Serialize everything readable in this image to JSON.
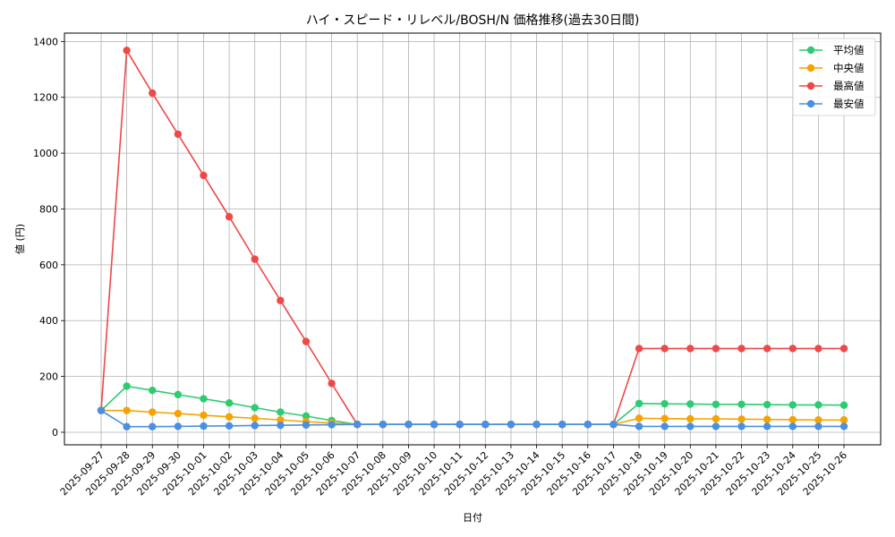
{
  "chart_data": {
    "type": "line",
    "title": "ハイ・スピード・リレベル/BOSH/N 価格推移(過去30日間)",
    "xlabel": "日付",
    "ylabel": "値 (円)",
    "ylim": [
      -45,
      1430
    ],
    "yticks": [
      0,
      200,
      400,
      600,
      800,
      1000,
      1200,
      1400
    ],
    "grid": true,
    "legend_position": "top-right",
    "categories": [
      "2025-09-27",
      "2025-09-28",
      "2025-09-29",
      "2025-09-30",
      "2025-10-01",
      "2025-10-02",
      "2025-10-03",
      "2025-10-04",
      "2025-10-05",
      "2025-10-06",
      "2025-10-07",
      "2025-10-08",
      "2025-10-09",
      "2025-10-10",
      "2025-10-11",
      "2025-10-12",
      "2025-10-13",
      "2025-10-14",
      "2025-10-15",
      "2025-10-16",
      "2025-10-17",
      "2025-10-18",
      "2025-10-19",
      "2025-10-20",
      "2025-10-21",
      "2025-10-22",
      "2025-10-23",
      "2025-10-24",
      "2025-10-25",
      "2025-10-26"
    ],
    "series": [
      {
        "name": "平均値",
        "color": "#2ecc71",
        "values": [
          78,
          165,
          150,
          135,
          120,
          105,
          88,
          72,
          58,
          42,
          28,
          28,
          28,
          28,
          28,
          28,
          28,
          28,
          28,
          28,
          28,
          103,
          102,
          101,
          100,
          100,
          99,
          98,
          98,
          97
        ]
      },
      {
        "name": "中央値",
        "color": "#f5a300",
        "values": [
          78,
          78,
          72,
          67,
          61,
          55,
          50,
          44,
          38,
          33,
          28,
          28,
          28,
          28,
          28,
          28,
          28,
          28,
          28,
          28,
          28,
          50,
          49,
          48,
          48,
          47,
          46,
          45,
          44,
          44
        ]
      },
      {
        "name": "最高値",
        "color": "#ef4848",
        "values": [
          78,
          1368,
          1215,
          1068,
          920,
          772,
          620,
          472,
          325,
          175,
          28,
          28,
          28,
          28,
          28,
          28,
          28,
          28,
          28,
          28,
          28,
          300,
          300,
          300,
          300,
          300,
          300,
          300,
          300,
          300
        ]
      },
      {
        "name": "最安値",
        "color": "#4a90e2",
        "values": [
          78,
          20,
          20,
          21,
          22,
          23,
          24,
          25,
          26,
          27,
          28,
          28,
          28,
          28,
          28,
          28,
          28,
          28,
          28,
          28,
          28,
          21,
          21,
          21,
          21,
          21,
          21,
          21,
          21,
          21
        ]
      }
    ]
  }
}
